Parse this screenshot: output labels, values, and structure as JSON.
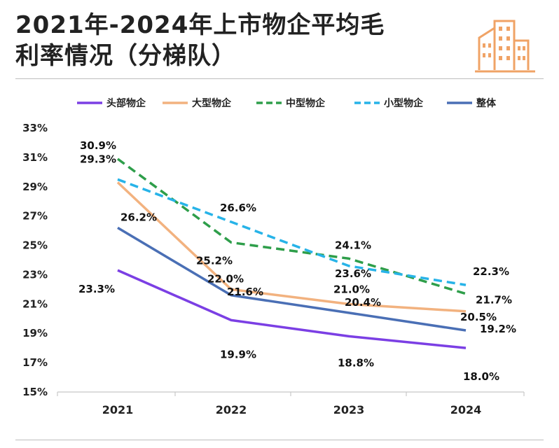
{
  "header": {
    "title_line1": "2021年-2024年上市物企平均毛",
    "title_line2": "利率情况（分梯队）"
  },
  "colors": {
    "头部物企": "#7b3fe4",
    "大型物企": "#f2b27f",
    "中型物企": "#2e9e4a",
    "小型物企": "#27b3e8",
    "整体": "#4a6fb5",
    "building": "#f0a366"
  },
  "chart_data": {
    "type": "line",
    "categories": [
      "2021",
      "2022",
      "2023",
      "2024"
    ],
    "y_ticks": [
      "33%",
      "31%",
      "29%",
      "27%",
      "25%",
      "23%",
      "21%",
      "19%",
      "17%",
      "15%"
    ],
    "ylim": [
      15,
      33
    ],
    "grid": false,
    "legend_position": "top",
    "series": [
      {
        "name": "头部物企",
        "values": [
          23.3,
          19.9,
          18.8,
          18.0
        ],
        "labels": [
          "23.3%",
          "19.9%",
          "18.8%",
          "18.0%"
        ],
        "dash": "solid"
      },
      {
        "name": "大型物企",
        "values": [
          29.3,
          22.0,
          21.0,
          20.5
        ],
        "labels": [
          "29.3%",
          "22.0%",
          "21.0%",
          "20.5%"
        ],
        "dash": "solid"
      },
      {
        "name": "中型物企",
        "values": [
          30.9,
          25.2,
          24.1,
          21.7
        ],
        "labels": [
          "30.9%",
          "25.2%",
          "24.1%",
          "21.7%"
        ],
        "dash": "dashed"
      },
      {
        "name": "小型物企",
        "values": [
          29.5,
          26.6,
          23.6,
          22.3
        ],
        "labels": [
          "",
          "26.6%",
          "23.6%",
          "22.3%"
        ],
        "dash": "dashed"
      },
      {
        "name": "整体",
        "values": [
          26.2,
          21.6,
          20.4,
          19.2
        ],
        "labels": [
          "26.2%",
          "21.6%",
          "20.4%",
          "19.2%"
        ],
        "dash": "solid"
      }
    ]
  }
}
